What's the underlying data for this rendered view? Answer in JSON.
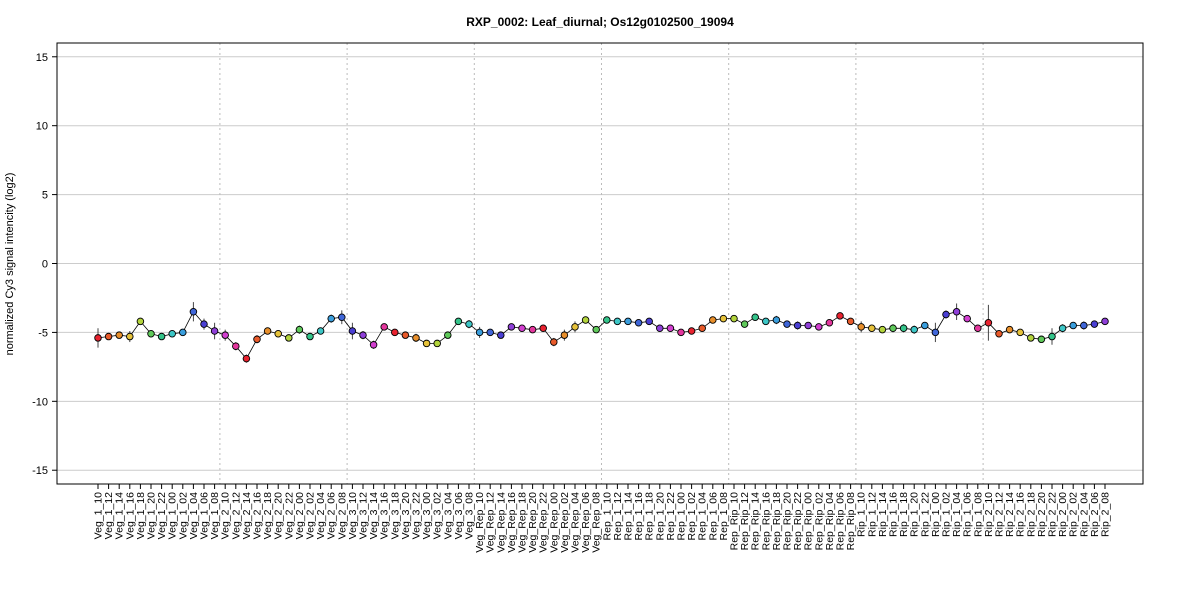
{
  "chart_data": {
    "type": "line",
    "title": "RXP_0002: Leaf_diurnal; Os12g0102500_19094",
    "xlabel": "",
    "ylabel": "normalized Cy3 signal intencity (log2)",
    "ylim": [
      -16,
      16
    ],
    "yticks": [
      -15,
      -10,
      -5,
      0,
      5,
      10,
      15
    ],
    "grid": "horizontal",
    "group_separators_after": [
      "Veg_1_08",
      "Veg_2_08",
      "Veg_3_08",
      "Veg_Rep_08",
      "Rep_1_08",
      "Rep_Rip_08",
      "Rip_1_08"
    ],
    "categories": [
      "Veg_1_10",
      "Veg_1_12",
      "Veg_1_14",
      "Veg_1_16",
      "Veg_1_18",
      "Veg_1_20",
      "Veg_1_22",
      "Veg_1_00",
      "Veg_1_02",
      "Veg_1_04",
      "Veg_1_06",
      "Veg_1_08",
      "Veg_2_10",
      "Veg_2_12",
      "Veg_2_14",
      "Veg_2_16",
      "Veg_2_18",
      "Veg_2_20",
      "Veg_2_22",
      "Veg_2_00",
      "Veg_2_02",
      "Veg_2_04",
      "Veg_2_06",
      "Veg_2_08",
      "Veg_3_10",
      "Veg_3_12",
      "Veg_3_14",
      "Veg_3_16",
      "Veg_3_18",
      "Veg_3_20",
      "Veg_3_22",
      "Veg_3_00",
      "Veg_3_02",
      "Veg_3_04",
      "Veg_3_06",
      "Veg_3_08",
      "Veg_Rep_10",
      "Veg_Rep_12",
      "Veg_Rep_14",
      "Veg_Rep_16",
      "Veg_Rep_18",
      "Veg_Rep_20",
      "Veg_Rep_22",
      "Veg_Rep_00",
      "Veg_Rep_02",
      "Veg_Rep_04",
      "Veg_Rep_06",
      "Veg_Rep_08",
      "Rep_1_10",
      "Rep_1_12",
      "Rep_1_14",
      "Rep_1_16",
      "Rep_1_18",
      "Rep_1_20",
      "Rep_1_22",
      "Rep_1_00",
      "Rep_1_02",
      "Rep_1_04",
      "Rep_1_06",
      "Rep_1_08",
      "Rep_Rip_10",
      "Rep_Rip_12",
      "Rep_Rip_14",
      "Rep_Rip_16",
      "Rep_Rip_18",
      "Rep_Rip_20",
      "Rep_Rip_22",
      "Rep_Rip_00",
      "Rep_Rip_02",
      "Rep_Rip_04",
      "Rep_Rip_06",
      "Rep_Rip_08",
      "Rip_1_10",
      "Rip_1_12",
      "Rip_1_14",
      "Rip_1_16",
      "Rip_1_18",
      "Rip_1_20",
      "Rip_1_22",
      "Rip_1_00",
      "Rip_1_02",
      "Rip_1_04",
      "Rip_1_06",
      "Rip_1_08",
      "Rip_2_10",
      "Rip_2_12",
      "Rip_2_14",
      "Rip_2_16",
      "Rip_2_18",
      "Rip_2_20",
      "Rip_2_22",
      "Rip_2_00",
      "Rip_2_02",
      "Rip_2_04",
      "Rip_2_06",
      "Rip_2_08"
    ],
    "values": [
      -5.4,
      -5.3,
      -5.2,
      -5.3,
      -4.2,
      -5.1,
      -5.3,
      -5.1,
      -5.0,
      -3.5,
      -4.4,
      -4.9,
      -5.2,
      -6.0,
      -6.9,
      -5.5,
      -4.9,
      -5.1,
      -5.4,
      -4.8,
      -5.3,
      -4.9,
      -4.0,
      -3.9,
      -4.9,
      -5.2,
      -5.9,
      -4.6,
      -5.0,
      -5.2,
      -5.4,
      -5.8,
      -5.8,
      -5.2,
      -4.2,
      -4.4,
      -5.0,
      -5.0,
      -5.2,
      -4.6,
      -4.7,
      -4.8,
      -4.7,
      -5.7,
      -5.2,
      -4.6,
      -4.1,
      -4.8,
      -4.1,
      -4.2,
      -4.2,
      -4.3,
      -4.2,
      -4.7,
      -4.7,
      -5.0,
      -4.9,
      -4.7,
      -4.1,
      -4.0,
      -4.0,
      -4.4,
      -3.9,
      -4.2,
      -4.1,
      -4.4,
      -4.5,
      -4.5,
      -4.6,
      -4.3,
      -3.8,
      -4.2,
      -4.6,
      -4.7,
      -4.8,
      -4.7,
      -4.7,
      -4.8,
      -4.5,
      -5.0,
      -3.7,
      -3.5,
      -4.0,
      -4.7,
      -4.3,
      -5.1,
      -4.8,
      -5.0,
      -5.4,
      -5.5,
      -5.3,
      -4.7,
      -4.5,
      -4.5,
      -4.4,
      -4.2
    ],
    "errors": [
      0.7,
      0.2,
      0.2,
      0.4,
      0.1,
      0.2,
      0.2,
      0.2,
      0.2,
      0.7,
      0.4,
      0.6,
      0.4,
      0.3,
      0.3,
      0.3,
      0.1,
      0.2,
      0.2,
      0.3,
      0.2,
      0.2,
      0.3,
      0.5,
      0.6,
      0.3,
      0.3,
      0.2,
      0.2,
      0.2,
      0.3,
      0.1,
      0.2,
      0.2,
      0.2,
      0.3,
      0.4,
      0.2,
      0.2,
      0.2,
      0.2,
      0.2,
      0.2,
      0.3,
      0.4,
      0.4,
      0.2,
      0.2,
      0.2,
      0.2,
      0.2,
      0.2,
      0.2,
      0.2,
      0.2,
      0.1,
      0.2,
      0.2,
      0.2,
      0.2,
      0.2,
      0.2,
      0.2,
      0.2,
      0.3,
      0.2,
      0.3,
      0.2,
      0.2,
      0.2,
      0.2,
      0.2,
      0.4,
      0.2,
      0.2,
      0.3,
      0.3,
      0.3,
      0.2,
      0.7,
      0.3,
      0.6,
      0.2,
      0.2,
      1.3,
      0.2,
      0.2,
      0.2,
      0.2,
      0.2,
      0.6,
      0.3,
      0.2,
      0.3,
      0.2,
      0.2
    ],
    "colors": {
      "point_palette": [
        "#e8222f",
        "#e85a2a",
        "#e88f2b",
        "#e6c23a",
        "#b3d43c",
        "#5fc95a",
        "#34c48a",
        "#3cc6c6",
        "#3a9edd",
        "#3f66d8",
        "#4a3fd3",
        "#8f3fd8",
        "#d23fd0",
        "#e3369d"
      ],
      "line": "#000000",
      "grid": "#cccccc",
      "separator": "#bbbbbb"
    }
  }
}
